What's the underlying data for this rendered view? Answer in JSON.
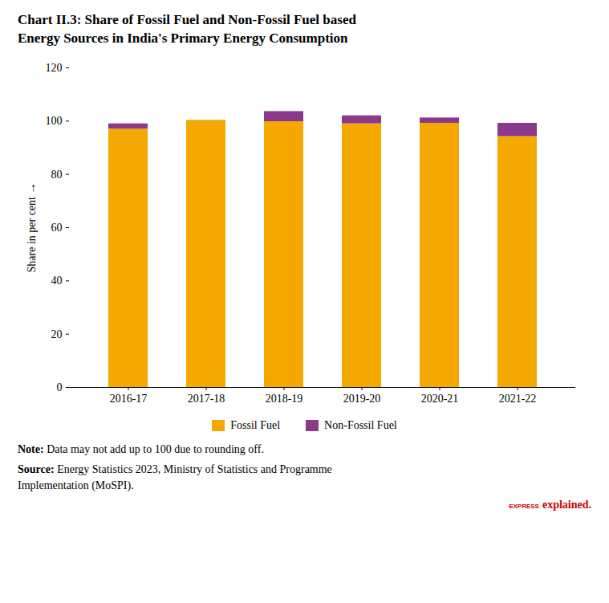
{
  "chart_data": {
    "type": "bar",
    "stacked": true,
    "title": "Chart II.3: Share of Fossil Fuel and Non-Fossil Fuel based\nEnergy Sources in India's Primary Energy Consumption",
    "categories": [
      "2016-17",
      "2017-18",
      "2018-19",
      "2019-20",
      "2020-21",
      "2021-22"
    ],
    "series": [
      {
        "name": "Fossil Fuel",
        "color": "#F5A800",
        "values": [
          97.0,
          100.3,
          99.8,
          99.0,
          99.2,
          94.2
        ]
      },
      {
        "name": "Non-Fossil Fuel",
        "color": "#8B3A8B",
        "values": [
          2.0,
          0.0,
          3.8,
          3.0,
          2.0,
          5.0
        ]
      }
    ],
    "ylabel": "Share in per cent",
    "ylim": [
      0,
      120
    ],
    "yticks": [
      0,
      20,
      40,
      60,
      80,
      100,
      120
    ],
    "legend": "bottom",
    "annotations": [
      {
        "text": "Note: Data may not add up to 100 due to rounding off."
      },
      {
        "text": "Source: Energy Statistics 2023, Ministry of Statistics and Programme\nImplementation (MoSPI)."
      },
      {
        "text": "EXPRESS",
        "color": "#CC0000"
      },
      {
        "text": "explained.",
        "color": "#CC0000"
      }
    ]
  }
}
